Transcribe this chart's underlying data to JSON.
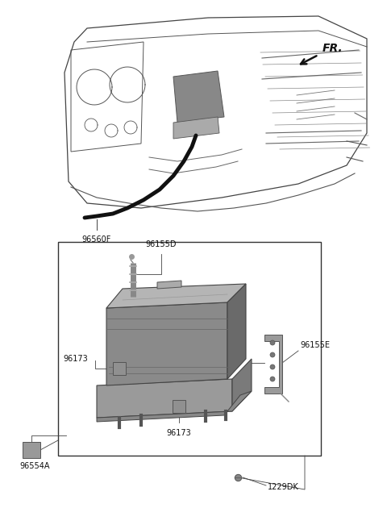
{
  "bg_color": "#ffffff",
  "fig_width": 4.8,
  "fig_height": 6.56,
  "dpi": 100,
  "labels": {
    "FR": "FR.",
    "96560F": "96560F",
    "96155D": "96155D",
    "96155E": "96155E",
    "96173_left": "96173",
    "96173_bottom": "96173",
    "96554A": "96554A",
    "1229DK": "1229DK"
  },
  "text_color": "#111111",
  "line_color": "#444444",
  "box_color": "#333333",
  "part_dark": "#7a7a7a",
  "part_mid": "#999999",
  "part_light": "#c0c0c0"
}
